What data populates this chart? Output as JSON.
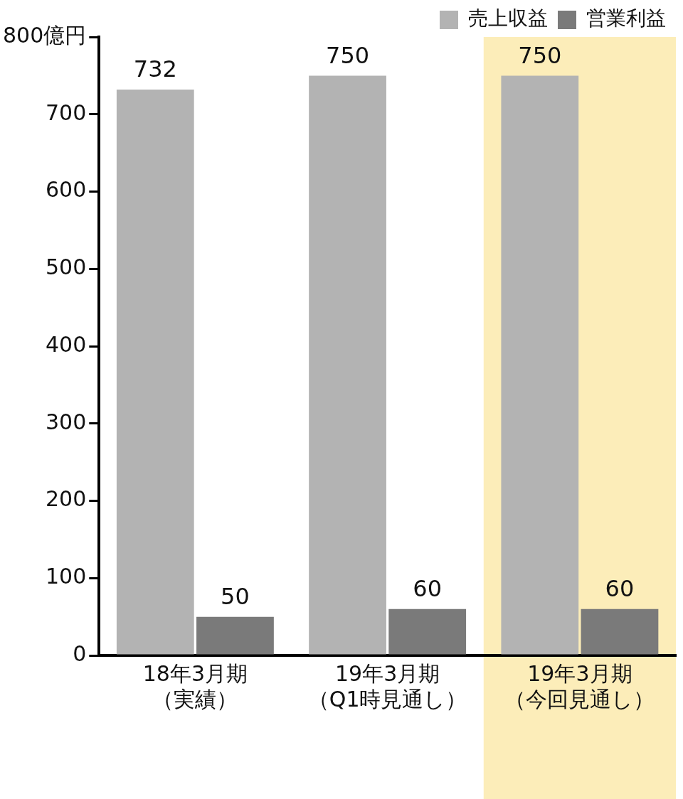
{
  "chart_data": {
    "type": "bar",
    "categories": [
      "18年3月期（実績）",
      "19年3月期（Q1時見通し）",
      "19年3月期（今回見通し）"
    ],
    "series": [
      {
        "name": "売上収益",
        "color": "#b3b3b3",
        "values": [
          732,
          750,
          750
        ]
      },
      {
        "name": "営業利益",
        "color": "#7a7a7a",
        "values": [
          50,
          60,
          60
        ]
      }
    ],
    "ylim": [
      0,
      800
    ],
    "yticks": [
      0,
      100,
      200,
      300,
      400,
      500,
      600,
      700,
      {
        "value": 800,
        "label": "800億円"
      }
    ],
    "bands": [
      {
        "axis": "x",
        "from": "19年3月期（今回見通し）",
        "to": "19年3月期（今回見通し）",
        "color": "#fcedb9"
      }
    ],
    "data_labels": true,
    "grid": false,
    "legend": "top right"
  }
}
